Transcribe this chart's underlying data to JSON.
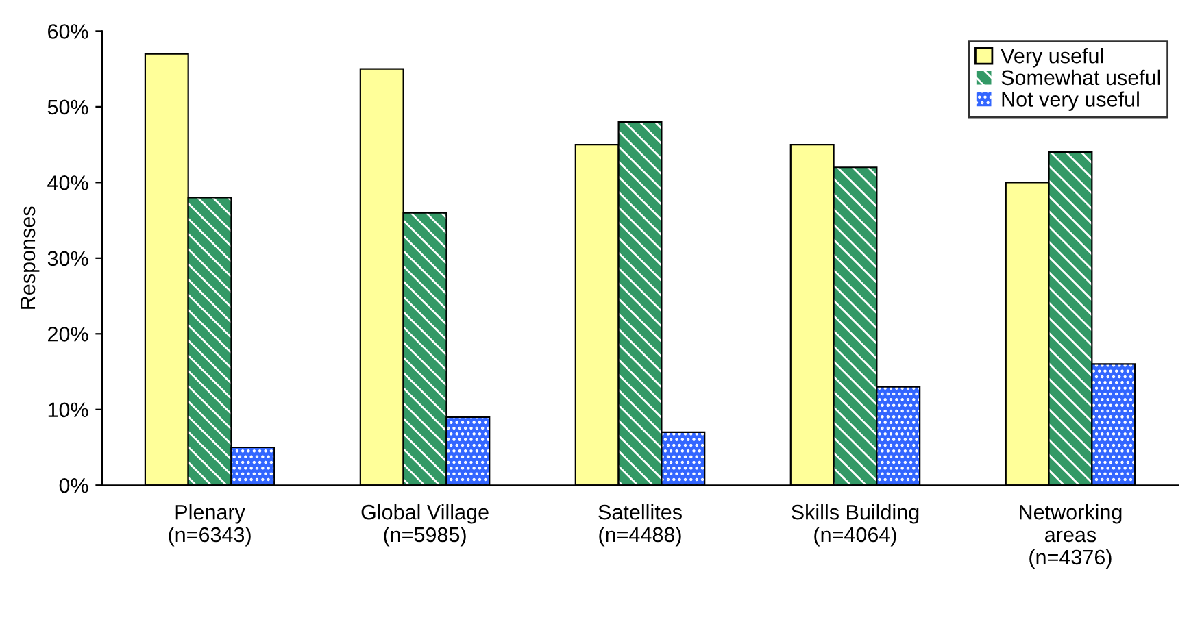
{
  "chart_data": {
    "type": "bar",
    "ylabel": "Responses",
    "categories": [
      "Plenary\n(n=6343)",
      "Global Village\n(n=5985)",
      "Satellites\n(n=4488)",
      "Skills Building\n(n=4064)",
      "Networking\nareas\n(n=4376)"
    ],
    "series": [
      {
        "name": "Very useful",
        "color": "#ffff99",
        "values": [
          57,
          55,
          45,
          45,
          40
        ]
      },
      {
        "name": "Somewhat useful",
        "color": "#339966",
        "values": [
          38,
          36,
          48,
          42,
          44
        ]
      },
      {
        "name": "Not very useful",
        "color": "#3366ff",
        "values": [
          5,
          9,
          7,
          13,
          16
        ]
      }
    ],
    "ylim": [
      0,
      60
    ],
    "yticks": [
      {
        "value": 0,
        "label": "0%"
      },
      {
        "value": 10,
        "label": "10%"
      },
      {
        "value": 20,
        "label": "20%"
      },
      {
        "value": 30,
        "label": "30%"
      },
      {
        "value": 40,
        "label": "40%"
      },
      {
        "value": 50,
        "label": "50%"
      },
      {
        "value": 60,
        "label": "60%"
      }
    ],
    "grid": false,
    "legend": "top right"
  }
}
